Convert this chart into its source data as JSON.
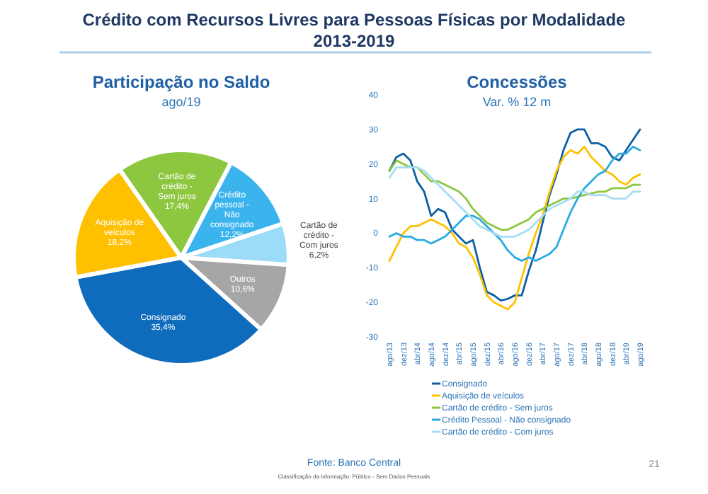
{
  "chart_data": [
    {
      "type": "other",
      "title": "Crédito com Recursos Livres para Pessoas Físicas por Modalidade 2013-2019",
      "annotations": [
        "Fonte: Banco Central",
        "Classificação da Informação: Público - Sem Dados Pessoais",
        "21"
      ]
    },
    {
      "type": "pie",
      "title": "Participação no Saldo",
      "subtitle": "ago/19",
      "categories": [
        "Cartão de crédito - Sem juros",
        "Crédito pessoal - Não consignado",
        "Cartão de crédito - Com juros",
        "Outros",
        "Consignado",
        "Aquisição de veículos"
      ],
      "values": [
        17.4,
        12.2,
        6.2,
        10.6,
        35.4,
        18.2
      ],
      "value_labels": [
        "17,4%",
        "12,2%",
        "6,2%",
        "10,6%",
        "35,4%",
        "18,2%"
      ],
      "colors": [
        "#8dc63f",
        "#3bb4ee",
        "#9ddcf8",
        "#a6a6a6",
        "#0f6cbd",
        "#ffc000"
      ]
    },
    {
      "type": "line",
      "title": "Concessões",
      "subtitle": "Var. % 12 m",
      "x": [
        "2013-08",
        "2013-10",
        "2013-12",
        "2014-02",
        "2014-04",
        "2014-06",
        "2014-08",
        "2014-10",
        "2014-12",
        "2015-02",
        "2015-04",
        "2015-06",
        "2015-08",
        "2015-10",
        "2015-12",
        "2016-02",
        "2016-04",
        "2016-06",
        "2016-08",
        "2016-10",
        "2016-12",
        "2017-02",
        "2017-04",
        "2017-06",
        "2017-08",
        "2017-10",
        "2017-12",
        "2018-02",
        "2018-04",
        "2018-06",
        "2018-08",
        "2018-10",
        "2018-12",
        "2019-02",
        "2019-04",
        "2019-06",
        "2019-08"
      ],
      "xlim": [
        "2013-08",
        "2019-08"
      ],
      "xticks": [
        {
          "value": "2013-08",
          "label": "ago/13"
        },
        {
          "value": "2013-12",
          "label": "dez/13"
        },
        {
          "value": "2014-04",
          "label": "abr/14"
        },
        {
          "value": "2014-08",
          "label": "ago/14"
        },
        {
          "value": "2014-12",
          "label": "dez/14"
        },
        {
          "value": "2015-04",
          "label": "abr/15"
        },
        {
          "value": "2015-08",
          "label": "ago/15"
        },
        {
          "value": "2015-12",
          "label": "dez/15"
        },
        {
          "value": "2016-04",
          "label": "abr/16"
        },
        {
          "value": "2016-08",
          "label": "ago/16"
        },
        {
          "value": "2016-12",
          "label": "dez/16"
        },
        {
          "value": "2017-04",
          "label": "abr/17"
        },
        {
          "value": "2017-08",
          "label": "ago/17"
        },
        {
          "value": "2017-12",
          "label": "dez/17"
        },
        {
          "value": "2018-04",
          "label": "abr/18"
        },
        {
          "value": "2018-08",
          "label": "ago/18"
        },
        {
          "value": "2018-12",
          "label": "dez/18"
        },
        {
          "value": "2019-04",
          "label": "abr/19"
        },
        {
          "value": "2019-08",
          "label": "ago/19"
        }
      ],
      "ylim": [
        -30,
        40
      ],
      "yticks": [
        -30,
        -20,
        -10,
        0,
        10,
        20,
        30,
        40
      ],
      "grid": false,
      "legend": "bottom",
      "marker": "none",
      "line_style": "solid",
      "series": [
        {
          "name": "Consignado",
          "color": "#0b5fa5",
          "values": [
            18,
            22,
            23,
            21,
            15,
            12,
            5,
            7,
            6,
            1,
            -1,
            -3,
            -2,
            -10,
            -17,
            -18,
            -19.5,
            -19,
            -18,
            -18,
            -11,
            -5,
            3,
            11,
            17,
            24,
            29,
            30,
            30,
            26,
            26,
            25,
            22,
            21,
            24,
            27,
            30
          ]
        },
        {
          "name": "Aquisição de veículos",
          "color": "#ffc000",
          "values": [
            -8,
            -4,
            0,
            2,
            2,
            3,
            4,
            3,
            2,
            0,
            -3,
            -4,
            -7,
            -12,
            -18,
            -20,
            -21,
            -22,
            -20,
            -13,
            -6,
            0,
            5,
            12,
            18,
            22,
            24,
            23,
            25,
            22,
            20,
            18,
            17,
            15,
            14,
            16,
            17
          ]
        },
        {
          "name": "Cartão de crédito - Sem juros",
          "color": "#8dc63f",
          "values": [
            18,
            21,
            20,
            19,
            19,
            17,
            15,
            15,
            14,
            13,
            12,
            10,
            7,
            5,
            3,
            2,
            1,
            1,
            2,
            3,
            4,
            6,
            7,
            8,
            9,
            10,
            10,
            10.5,
            11,
            11.5,
            12,
            12,
            13,
            13,
            13,
            14,
            14
          ]
        },
        {
          "name": "Crédito Pessoal - Não consignado",
          "color": "#29aae1",
          "values": [
            -1,
            0,
            -1,
            -1,
            -2,
            -2,
            -3,
            -2,
            -1,
            1,
            3,
            5,
            5,
            4,
            2,
            0,
            -2,
            -5,
            -7,
            -8,
            -7,
            -8,
            -7,
            -6,
            -4,
            1,
            6,
            10,
            13,
            15,
            17,
            18,
            21,
            23,
            23,
            25,
            24
          ]
        },
        {
          "name": "Cartão de crédito - Com juros",
          "color": "#a7dcf5",
          "values": [
            16,
            19,
            19,
            19,
            19,
            18,
            16,
            14,
            12,
            10,
            8,
            6,
            4,
            2,
            1,
            0,
            -1,
            -1,
            -1,
            0,
            1,
            3,
            5,
            7,
            8,
            9,
            10,
            12,
            12,
            11,
            11,
            11,
            10,
            10,
            10,
            12,
            12
          ]
        }
      ]
    }
  ]
}
